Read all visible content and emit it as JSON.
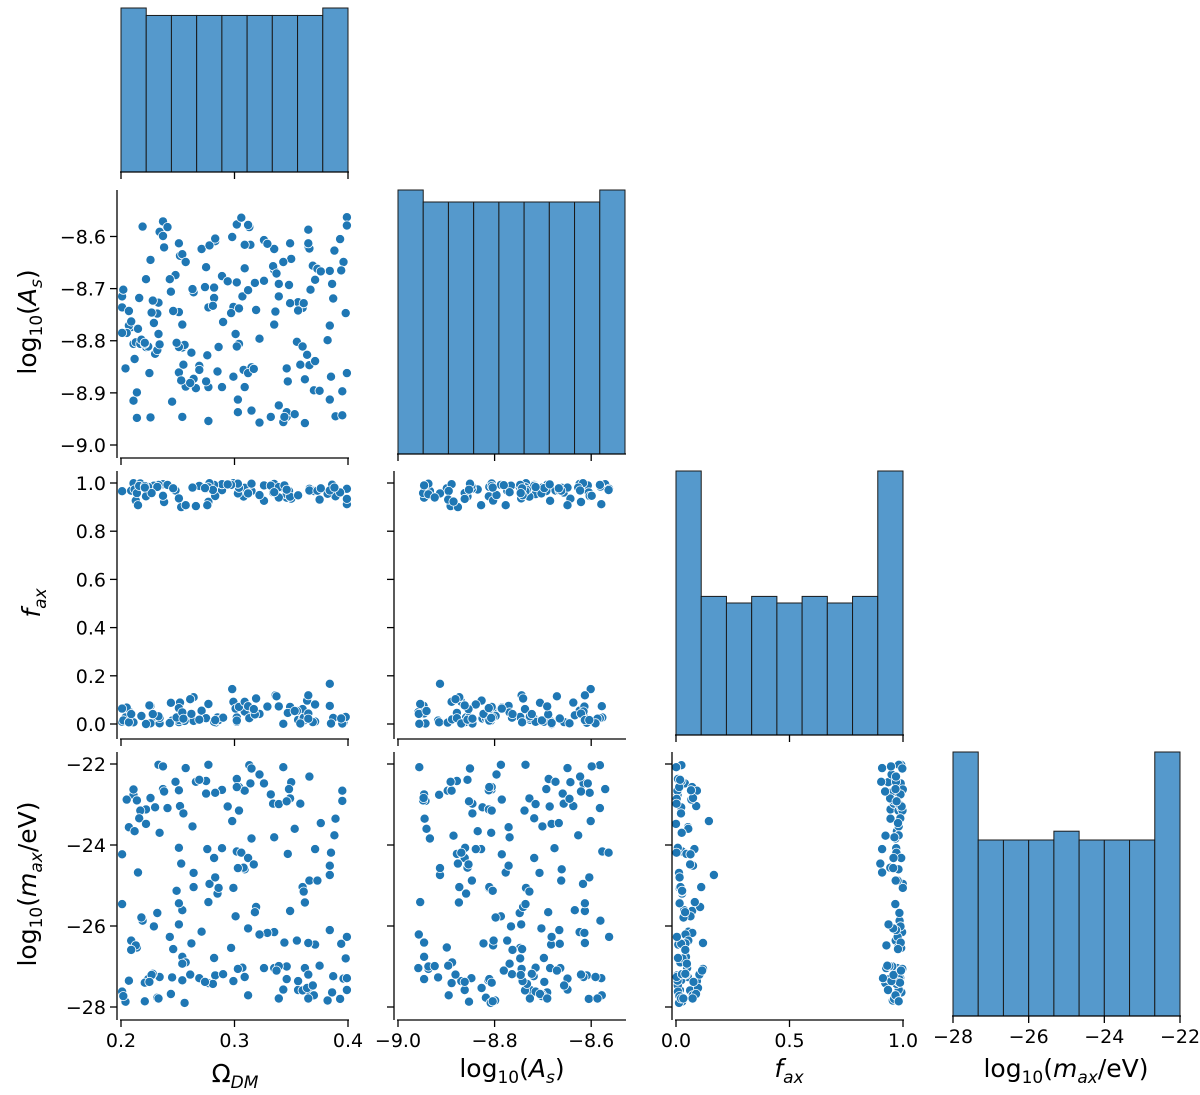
{
  "chart_data": {
    "type": "pairplot",
    "title": "",
    "color": "#1f77b4",
    "bar_color": "#5599cc",
    "variables": [
      {
        "key": "omega",
        "label": "Ω_DM",
        "range": [
          0.2,
          0.4
        ],
        "ticks": [
          0.2,
          0.3,
          0.4
        ],
        "tick_labels": [
          "0.2",
          "0.3",
          "0.4"
        ]
      },
      {
        "key": "as",
        "label": "log₁₀(A_s)",
        "range": [
          -9.0,
          -8.53
        ],
        "ticks": [
          -9.0,
          -8.9,
          -8.8,
          -8.7,
          -8.6
        ],
        "tick_labels": [
          "−9.0",
          "−8.9",
          "−8.8",
          "−8.7",
          "−8.6"
        ],
        "x_ticks": [
          -9.0,
          -8.8,
          -8.6
        ],
        "x_tick_labels": [
          "−9.0",
          "−8.8",
          "−8.6"
        ]
      },
      {
        "key": "fax",
        "label": "f_ax",
        "range": [
          0.0,
          1.0
        ],
        "ticks": [
          0.0,
          0.2,
          0.4,
          0.6,
          0.8,
          1.0
        ],
        "tick_labels": [
          "0.0",
          "0.2",
          "0.4",
          "0.6",
          "0.8",
          "1.0"
        ],
        "x_ticks": [
          0.0,
          0.5,
          1.0
        ],
        "x_tick_labels": [
          "0.0",
          "0.5",
          "1.0"
        ]
      },
      {
        "key": "max",
        "label": "log₁₀(m_ax/eV)",
        "range": [
          -28,
          -22
        ],
        "ticks": [
          -28,
          -26,
          -24,
          -22
        ],
        "tick_labels": [
          "−28",
          "−26",
          "−24",
          "−22"
        ],
        "x_ticks": [
          -28,
          -26,
          -24,
          -22
        ],
        "x_tick_labels": [
          "−28",
          "−26",
          "−24",
          "−22"
        ]
      }
    ],
    "histograms": {
      "omega": [
        22,
        21,
        21,
        21,
        21,
        21,
        21,
        21,
        22
      ],
      "as": [
        22,
        21,
        21,
        21,
        21,
        21,
        21,
        21,
        22
      ],
      "fax": [
        40,
        21,
        20,
        21,
        20,
        21,
        20,
        21,
        40
      ],
      "max": [
        30,
        20,
        20,
        20,
        21,
        20,
        20,
        20,
        30
      ]
    },
    "samples": {
      "omega": [
        0.271,
        0.384,
        0.298,
        0.23,
        0.237,
        0.389,
        0.335,
        0.336,
        0.362,
        0.382,
        0.275,
        0.315,
        0.254,
        0.314,
        0.349,
        0.302,
        0.362,
        0.289,
        0.356,
        0.245,
        0.209,
        0.232,
        0.222,
        0.233,
        0.387,
        0.399,
        0.283,
        0.335,
        0.211,
        0.307,
        0.285,
        0.306,
        0.214,
        0.395,
        0.396,
        0.289,
        0.207,
        0.395,
        0.386,
        0.367,
        0.326,
        0.282,
        0.257,
        0.299,
        0.334,
        0.251,
        0.277,
        0.329,
        0.398,
        0.211,
        0.286,
        0.309,
        0.308,
        0.219,
        0.252,
        0.309,
        0.36,
        0.322,
        0.278,
        0.213,
        0.35,
        0.355,
        0.254,
        0.393,
        0.347,
        0.36,
        0.215,
        0.301,
        0.326,
        0.343,
        0.283,
        0.299,
        0.303,
        0.212,
        0.313,
        0.371,
        0.322,
        0.366,
        0.302,
        0.346,
        0.361,
        0.269,
        0.304,
        0.303,
        0.241,
        0.205,
        0.264,
        0.364,
        0.332,
        0.248,
        0.254,
        0.369,
        0.275,
        0.277,
        0.264,
        0.229,
        0.224,
        0.214,
        0.343,
        0.217,
        0.304,
        0.37,
        0.263,
        0.232,
        0.365,
        0.282,
        0.384,
        0.216,
        0.218,
        0.346,
        0.315,
        0.309,
        0.201,
        0.319,
        0.312,
        0.399,
        0.262,
        0.312,
        0.226,
        0.266,
        0.276,
        0.204,
        0.253,
        0.388,
        0.202,
        0.358,
        0.348,
        0.349,
        0.281,
        0.318,
        0.312,
        0.222,
        0.244,
        0.384,
        0.261,
        0.256,
        0.371,
        0.365,
        0.339,
        0.226,
        0.274,
        0.221,
        0.385,
        0.251,
        0.201,
        0.339,
        0.297,
        0.394,
        0.339,
        0.353,
        0.344,
        0.207,
        0.375,
        0.251,
        0.243,
        0.302,
        0.249,
        0.234,
        0.254,
        0.294,
        0.251,
        0.356,
        0.366,
        0.373,
        0.29,
        0.365,
        0.317,
        0.234,
        0.238,
        0.346,
        0.269,
        0.277,
        0.246,
        0.399,
        0.257,
        0.233,
        0.283,
        0.228,
        0.227,
        0.201,
        0.255,
        0.376,
        0.237,
        0.225,
        0.337,
        0.221,
        0.335,
        0.209
      ],
      "as": [
        -8.624,
        -8.913,
        -8.601,
        -8.825,
        -8.571,
        -8.945,
        -8.624,
        -8.744,
        -8.874,
        -8.799,
        -8.659,
        -8.934,
        -8.946,
        -8.616,
        -8.613,
        -8.577,
        -8.958,
        -8.676,
        -8.726,
        -8.917,
        -8.774,
        -8.818,
        -8.812,
        -8.787,
        -8.719,
        -8.563,
        -8.609,
        -8.664,
        -8.915,
        -8.715,
        -8.859,
        -8.564,
        -8.899,
        -8.897,
        -8.649,
        -8.889,
        -8.771,
        -8.943,
        -8.691,
        -8.702,
        -8.607,
        -8.718,
        -8.888,
        -8.869,
        -8.657,
        -8.861,
        -8.889,
        -8.614,
        -8.747,
        -8.806,
        -8.812,
        -8.661,
        -8.856,
        -8.581,
        -8.637,
        -8.616,
        -8.737,
        -8.957,
        -8.617,
        -8.803,
        -8.643,
        -8.802,
        -8.634,
        -8.605,
        -8.878,
        -8.811,
        -8.777,
        -8.787,
        -8.685,
        -8.649,
        -8.603,
        -8.735,
        -8.913,
        -8.835,
        -8.582,
        -8.683,
        -8.796,
        -8.847,
        -8.688,
        -8.946,
        -8.728,
        -8.848,
        -8.738,
        -8.937,
        -8.582,
        -8.785,
        -8.873,
        -8.827,
        -8.946,
        -8.674,
        -8.813,
        -8.656,
        -8.878,
        -8.736,
        -8.707,
        -8.766,
        -8.811,
        -8.948,
        -8.956,
        -8.806,
        -8.806,
        -8.895,
        -8.701,
        -8.748,
        -8.621,
        -8.698,
        -8.666,
        -8.718,
        -8.798,
        -8.937,
        -8.851,
        -8.889,
        -8.715,
        -8.741,
        -8.862,
        -8.579,
        -8.823,
        -8.578,
        -8.645,
        -8.891,
        -8.828,
        -8.853,
        -8.876,
        -8.627,
        -8.702,
        -8.846,
        -8.693,
        -8.728,
        -8.733,
        -8.689,
        -8.703,
        -8.682,
        -8.706,
        -8.771,
        -8.881,
        -8.808,
        -8.839,
        -8.587,
        -8.924,
        -8.947,
        -8.697,
        -8.806,
        -8.869,
        -8.613,
        -8.736,
        -8.715,
        -8.747,
        -8.665,
        -8.691,
        -8.941,
        -8.946,
        -8.743,
        -8.896,
        -8.812,
        -8.682,
        -8.811,
        -8.804,
        -8.591,
        -8.769,
        -8.686,
        -8.745,
        -8.742,
        -8.623,
        -8.662,
        -8.764,
        -8.613,
        -8.854,
        -8.807,
        -8.621,
        -8.853,
        -8.856,
        -8.954,
        -8.743,
        -8.862,
        -8.649,
        -8.727,
        -8.604,
        -8.723,
        -8.746,
        -8.785,
        -8.846,
        -8.667,
        -8.599,
        -8.862,
        -8.671,
        -8.804,
        -8.769,
        -8.763,
        -8.781,
        -8.885
      ],
      "fax": [
        0.055,
        0.167,
        0.145,
        0.023,
        0.995,
        0.945,
        0.996,
        0.119,
        0.016,
        0.955,
        0.977,
        0.967,
        0.044,
        0.039,
        0.071,
        0.027,
        0.049,
        0.97,
        0.017,
        0.014,
        0.968,
        0.024,
        0.945,
        0.992,
        0.025,
        0.976,
        0.005,
        0.974,
        0.007,
        0.954,
        0.027,
        0.971,
        0.978,
        0.006,
        0.006,
        0.995,
        0.053,
        0.002,
        0.993,
        0.971,
        0.99,
        0.992,
        0.019,
        0.092,
        0.96,
        0.008,
        0.922,
        0.072,
        0.029,
        0.999,
        0.016,
        0.98,
        0.944,
        0.985,
        0.089,
        0.052,
        0.062,
        0.042,
        0.999,
        0.927,
        0.935,
        0.054,
        0.036,
        0.961,
        0.046,
        0.02,
        0.908,
        0.064,
        0.926,
        0.981,
        0.946,
        0.999,
        0.957,
        0.973,
        0.024,
        0.01,
        0.95,
        0.976,
        0.009,
        0.939,
        0.026,
        0.988,
        0.98,
        0.997,
        0.992,
        0.068,
        0.111,
        0.097,
        0.989,
        0.969,
        0.023,
        0.008,
        0.024,
        0.982,
        0.013,
        0.989,
        0.984,
        0.958,
        0.001,
        0.998,
        0.071,
        0.967,
        0.981,
        0.984,
        0.043,
        0.009,
        0.969,
        0.988,
        0.033,
        0.953,
        0.997,
        0.092,
        0.009,
        0.106,
        0.958,
        0.912,
        0.042,
        0.074,
        0.003,
        0.904,
        0.908,
        0.027,
        0.9,
        0.981,
        0.015,
        0.002,
        0.967,
        0.943,
        0.971,
        0.04,
        0.957,
        0.0,
        0.088,
        0.075,
        0.103,
        0.013,
        0.081,
        0.022,
        0.94,
        0.075,
        0.979,
        0.987,
        0.002,
        0.016,
        0.966,
        0.983,
        0.992,
        0.023,
        0.073,
        0.054,
        0.99,
        0.007,
        0.931,
        0.066,
        0.004,
        0.014,
        0.027,
        0.003,
        0.048,
        0.994,
        0.936,
        0.949,
        0.969,
        0.968,
        0.026,
        0.119,
        0.062,
        0.025,
        0.921,
        0.972,
        0.018,
        0.083,
        0.978,
        0.934,
        0.908,
        0.032,
        0.016,
        0.041,
        0.958,
        0.064,
        0.022,
        0.978,
        0.947,
        0.077,
        0.115,
        0.981,
        0.962,
        0.041,
        0.991,
        0.923
      ],
      "max": [
        -26.14,
        -24.74,
        -23.41,
        -23.07,
        -22.62,
        -23.35,
        -26.15,
        -27.06,
        -25.42,
        -27.84,
        -22.73,
        -23.84,
        -26.76,
        -22.48,
        -25.63,
        -24.16,
        -27.04,
        -24.08,
        -27.58,
        -27.27,
        -26.36,
        -27.77,
        -23.12,
        -22.02,
        -27.24,
        -26.27,
        -27.22,
        -27.04,
        -22.76,
        -27.03,
        -25.2,
        -24.19,
        -26.53,
        -22.66,
        -27.3,
        -22.64,
        -23.56,
        -22.91,
        -27.64,
        -27.69,
        -22.48,
        -24.32,
        -26.9,
        -27.36,
        -22.98,
        -24.07,
        -27.41,
        -26.17,
        -26.8,
        -22.63,
        -25.06,
        -24.6,
        -24.56,
        -25.87,
        -23.04,
        -27.26,
        -27.59,
        -26.21,
        -24.96,
        -26.48,
        -22.45,
        -26.36,
        -25.61,
        -27.8,
        -24.22,
        -25.04,
        -24.68,
        -25.76,
        -27.04,
        -27.57,
        -22.71,
        -25.06,
        -24.57,
        -23.66,
        -22.03,
        -26.46,
        -22.26,
        -24.88,
        -22.37,
        -27.31,
        -25.15,
        -27.29,
        -23.15,
        -27.06,
        -23.09,
        -22.88,
        -25.04,
        -27.53,
        -22.75,
        -22.44,
        -27.34,
        -27.47,
        -22.42,
        -22.02,
        -24.69,
        -26.01,
        -27.31,
        -22.9,
        -22.08,
        -23.15,
        -22.57,
        -27.71,
        -23.54,
        -25.68,
        -27.2,
        -26.79,
        -26.1,
        -23.34,
        -25.79,
        -27.0,
        -22.11,
        -22.66,
        -27.62,
        -25.53,
        -24.32,
        -27.29,
        -26.43,
        -27.71,
        -22.86,
        -22.44,
        -24.1,
        -27.87,
        -24.46,
        -23.76,
        -27.73,
        -22.98,
        -22.62,
        -22.85,
        -27.43,
        -25.66,
        -26.06,
        -23.48,
        -27.68,
        -24.51,
        -27.2,
        -27.9,
        -24.1,
        -27.79,
        -26.99,
        -22.84,
        -27.38,
        -27.4,
        -24.19,
        -25.44,
        -25.46,
        -22.99,
        -26.54,
        -26.44,
        -27.79,
        -23.6,
        -26.41,
        -27.35,
        -26.98,
        -22.65,
        -26.27,
        -22.57,
        -25.13,
        -27.26,
        -26.93,
        -23.05,
        -25.96,
        -27.36,
        -22.31,
        -24.88,
        -27.19,
        -26.42,
        -24.48,
        -23.7,
        -22.68,
        -22.92,
        -22.39,
        -25.41,
        -26.57,
        -27.58,
        -22.1,
        -27.79,
        -24.8,
        -27.18,
        -27.21,
        -24.23,
        -23.22,
        -23.46,
        -22.06,
        -27.38,
        -27.1,
        -27.86,
        -23.81,
        -26.59,
        -27.1,
        -23.77
      ]
    }
  }
}
